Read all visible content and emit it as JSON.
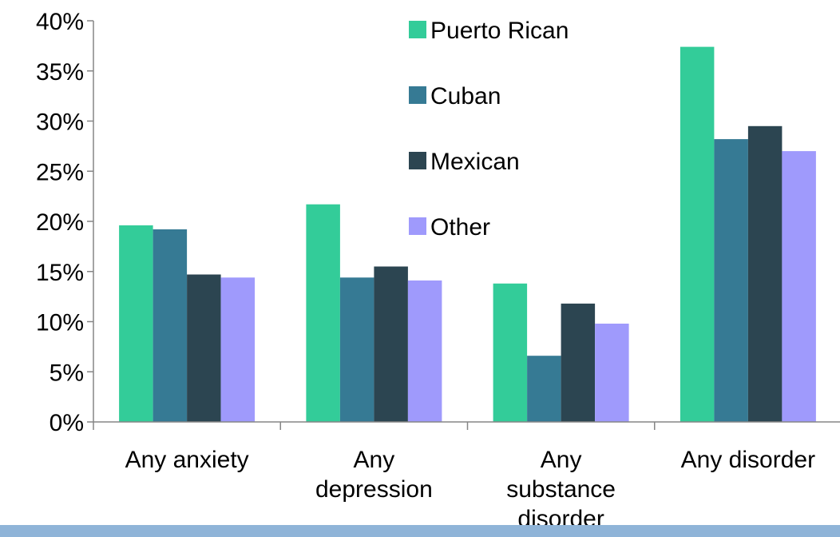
{
  "chart_data": {
    "type": "bar",
    "title": "",
    "xlabel": "",
    "ylabel": "",
    "categories": [
      [
        "Any anxiety"
      ],
      [
        "Any",
        "depression"
      ],
      [
        "Any",
        "substance",
        "disorder"
      ],
      [
        "Any disorder"
      ]
    ],
    "yticks": [
      "0%",
      "5%",
      "10%",
      "15%",
      "20%",
      "25%",
      "30%",
      "35%",
      "40%"
    ],
    "ylim": [
      0,
      40
    ],
    "grid": false,
    "legend_position": "top-center",
    "series": [
      {
        "name": "Puerto Rican",
        "color": "#33cc99",
        "values": [
          19.6,
          21.7,
          13.8,
          37.4
        ]
      },
      {
        "name": "Cuban",
        "color": "#367a94",
        "values": [
          19.2,
          14.4,
          6.6,
          28.2
        ]
      },
      {
        "name": "Mexican",
        "color": "#2c4551",
        "values": [
          14.7,
          15.5,
          11.8,
          29.5
        ]
      },
      {
        "name": "Other",
        "color": "#9f9afc",
        "values": [
          14.4,
          14.1,
          9.8,
          27.0
        ]
      }
    ]
  }
}
